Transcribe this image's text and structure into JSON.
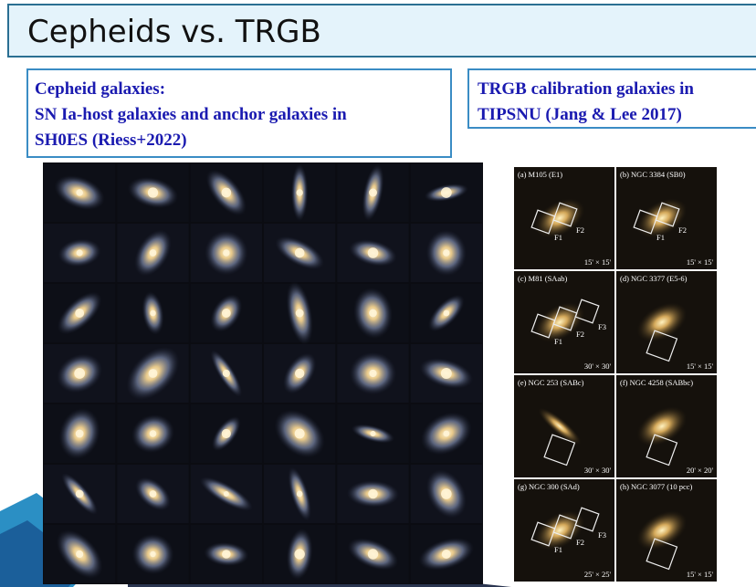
{
  "title": "Cepheids vs. TRGB",
  "cepheid_box": {
    "lines": [
      "Cepheid galaxies:",
      "SN Ia-host galaxies and anchor galaxies in",
      "SH0ES (Riess+2022)"
    ]
  },
  "trgb_box": {
    "lines": [
      "TRGB calibration galaxies in",
      "TIPSNU (Jang & Lee 2017)"
    ]
  },
  "panels": [
    {
      "label": "(a) M105 (E1)",
      "scale": "15' × 15'",
      "fields": [
        "F1",
        "F2"
      ]
    },
    {
      "label": "(b) NGC 3384 (SB0)",
      "scale": "15' × 15'",
      "fields": [
        "F1",
        "F2"
      ]
    },
    {
      "label": "(c) M81 (SAab)",
      "scale": "30' × 30'",
      "fields": [
        "F1",
        "F2",
        "F3"
      ]
    },
    {
      "label": "(d) NGC 3377 (E5-6)",
      "scale": "15' × 15'",
      "fields": []
    },
    {
      "label": "(e) NGC 253 (SABc)",
      "scale": "30' × 30'",
      "fields": []
    },
    {
      "label": "(f) NGC 4258 (SABbc)",
      "scale": "20' × 20'",
      "fields": []
    },
    {
      "label": "(g) NGC 300 (SAd)",
      "scale": "25' × 25'",
      "fields": [
        "F1",
        "F2",
        "F3"
      ]
    },
    {
      "label": "(h) NGC 3077 (10 pcc)",
      "scale": "15' × 15'",
      "fields": []
    }
  ]
}
